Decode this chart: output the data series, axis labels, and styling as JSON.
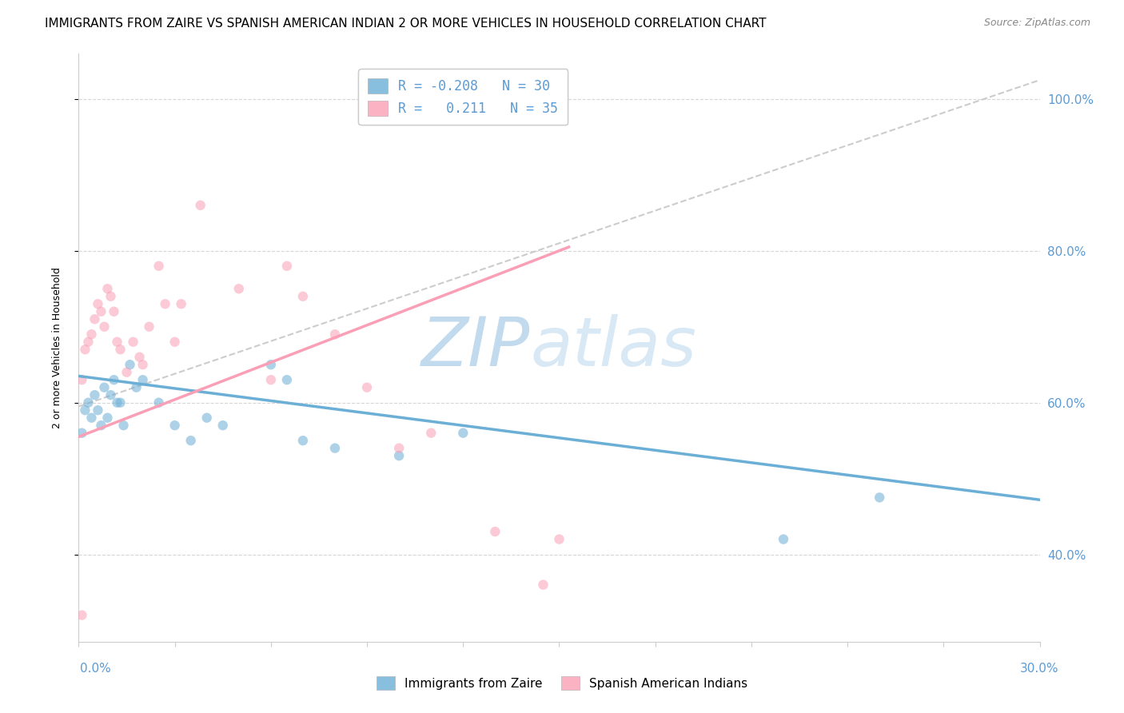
{
  "title": "IMMIGRANTS FROM ZAIRE VS SPANISH AMERICAN INDIAN 2 OR MORE VEHICLES IN HOUSEHOLD CORRELATION CHART",
  "source": "Source: ZipAtlas.com",
  "ylabel": "2 or more Vehicles in Household",
  "legend_entries": [
    {
      "label": "R = -0.208   N = 30",
      "color": "#aec6e8"
    },
    {
      "label": "R =   0.211   N = 35",
      "color": "#f4b8c8"
    }
  ],
  "legend_labels_bottom": [
    "Immigrants from Zaire",
    "Spanish American Indians"
  ],
  "blue_scatter_x": [
    0.001,
    0.002,
    0.003,
    0.004,
    0.005,
    0.006,
    0.007,
    0.008,
    0.009,
    0.01,
    0.011,
    0.012,
    0.013,
    0.014,
    0.016,
    0.018,
    0.02,
    0.025,
    0.03,
    0.035,
    0.04,
    0.045,
    0.06,
    0.065,
    0.07,
    0.08,
    0.1,
    0.12,
    0.22,
    0.25
  ],
  "blue_scatter_y": [
    0.56,
    0.59,
    0.6,
    0.58,
    0.61,
    0.59,
    0.57,
    0.62,
    0.58,
    0.61,
    0.63,
    0.6,
    0.6,
    0.57,
    0.65,
    0.62,
    0.63,
    0.6,
    0.57,
    0.55,
    0.58,
    0.57,
    0.65,
    0.63,
    0.55,
    0.54,
    0.53,
    0.56,
    0.42,
    0.475
  ],
  "pink_scatter_x": [
    0.001,
    0.002,
    0.003,
    0.004,
    0.005,
    0.006,
    0.007,
    0.008,
    0.009,
    0.01,
    0.011,
    0.012,
    0.013,
    0.015,
    0.017,
    0.019,
    0.02,
    0.022,
    0.025,
    0.027,
    0.03,
    0.032,
    0.038,
    0.05,
    0.06,
    0.065,
    0.07,
    0.08,
    0.09,
    0.1,
    0.11,
    0.13,
    0.145,
    0.15,
    0.001
  ],
  "pink_scatter_y": [
    0.63,
    0.67,
    0.68,
    0.69,
    0.71,
    0.73,
    0.72,
    0.7,
    0.75,
    0.74,
    0.72,
    0.68,
    0.67,
    0.64,
    0.68,
    0.66,
    0.65,
    0.7,
    0.78,
    0.73,
    0.68,
    0.73,
    0.86,
    0.75,
    0.63,
    0.78,
    0.74,
    0.69,
    0.62,
    0.54,
    0.56,
    0.43,
    0.36,
    0.42,
    0.32
  ],
  "blue_line_x": [
    0.0,
    0.3
  ],
  "blue_line_y": [
    0.635,
    0.472
  ],
  "pink_line_x": [
    0.0,
    0.153
  ],
  "pink_line_y": [
    0.555,
    0.805
  ],
  "grey_dashed_line_x": [
    0.0,
    0.3
  ],
  "grey_dashed_line_y": [
    0.595,
    1.025
  ],
  "xmin": 0.0,
  "xmax": 0.3,
  "ymin": 0.285,
  "ymax": 1.06,
  "ytick_vals": [
    0.4,
    0.6,
    0.8,
    1.0
  ],
  "ytick_labels": [
    "40.0%",
    "60.0%",
    "80.0%",
    "100.0%"
  ],
  "watermark_zip": "ZIP",
  "watermark_atlas": "atlas",
  "scatter_alpha": 0.55,
  "scatter_size": 80,
  "blue_color": "#6baed6",
  "pink_color": "#fa9fb5",
  "grey_color": "#cccccc",
  "title_fontsize": 11,
  "source_fontsize": 9,
  "tick_label_color": "#5b9bd5"
}
